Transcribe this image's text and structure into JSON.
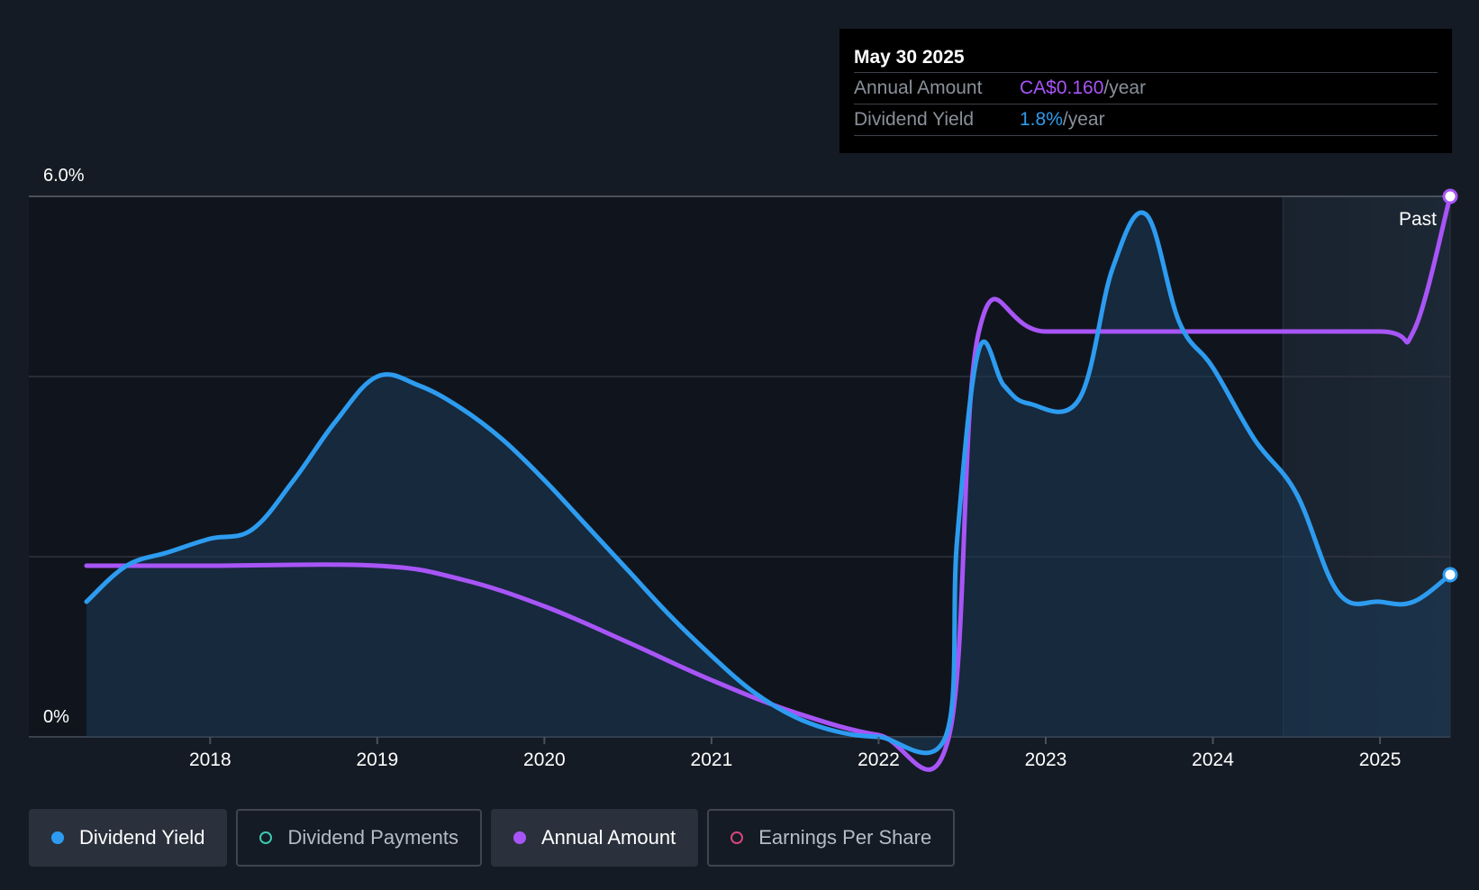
{
  "tooltip": {
    "date": "May 30 2025",
    "annual_label": "Annual Amount",
    "annual_value": "CA$0.160",
    "annual_unit": "/year",
    "yield_label": "Dividend Yield",
    "yield_value": "1.8%",
    "yield_unit": "/year"
  },
  "past_label": "Past",
  "legend": [
    {
      "label": "Dividend Yield",
      "color": "#2d9cf0",
      "active": true
    },
    {
      "label": "Dividend Payments",
      "color": "#3cc9b0",
      "active": false
    },
    {
      "label": "Annual Amount",
      "color": "#a855f7",
      "active": true
    },
    {
      "label": "Earnings Per Share",
      "color": "#d6467e",
      "active": false
    }
  ],
  "colors": {
    "yield": "#2d9cf0",
    "annual": "#a855f7",
    "background": "#151b24",
    "grid": "#2f3540"
  },
  "chart_data": {
    "type": "line",
    "y_tick_labels": [
      "6.0%",
      "0%"
    ],
    "ylim": [
      0,
      6
    ],
    "xlim": [
      2017.26,
      2025.42
    ],
    "x_tick_labels": [
      "2018",
      "2019",
      "2020",
      "2021",
      "2022",
      "2023",
      "2024",
      "2025"
    ],
    "x_ticks": [
      2018,
      2019,
      2020,
      2021,
      2022,
      2023,
      2024,
      2025
    ],
    "past_region_start": 2024.42,
    "series": [
      {
        "name": "Dividend Yield",
        "key": "yield",
        "points": [
          [
            2017.26,
            1.5
          ],
          [
            2017.5,
            1.9
          ],
          [
            2017.75,
            2.05
          ],
          [
            2018.0,
            2.2
          ],
          [
            2018.25,
            2.3
          ],
          [
            2018.5,
            2.85
          ],
          [
            2018.75,
            3.5
          ],
          [
            2019.0,
            4.0
          ],
          [
            2019.25,
            3.9
          ],
          [
            2019.5,
            3.65
          ],
          [
            2019.75,
            3.3
          ],
          [
            2020.0,
            2.85
          ],
          [
            2020.25,
            2.35
          ],
          [
            2020.5,
            1.85
          ],
          [
            2020.75,
            1.35
          ],
          [
            2021.0,
            0.9
          ],
          [
            2021.25,
            0.5
          ],
          [
            2021.5,
            0.22
          ],
          [
            2021.75,
            0.06
          ],
          [
            2022.0,
            0.0
          ],
          [
            2022.4,
            0.0
          ],
          [
            2022.47,
            2.2
          ],
          [
            2022.6,
            4.3
          ],
          [
            2022.75,
            3.9
          ],
          [
            2022.9,
            3.7
          ],
          [
            2023.2,
            3.75
          ],
          [
            2023.4,
            5.2
          ],
          [
            2023.6,
            5.8
          ],
          [
            2023.8,
            4.6
          ],
          [
            2024.0,
            4.1
          ],
          [
            2024.25,
            3.3
          ],
          [
            2024.5,
            2.7
          ],
          [
            2024.75,
            1.6
          ],
          [
            2025.0,
            1.5
          ],
          [
            2025.2,
            1.5
          ],
          [
            2025.42,
            1.8
          ]
        ]
      },
      {
        "name": "Annual Amount",
        "key": "annual",
        "points": [
          [
            2017.26,
            1.9
          ],
          [
            2018.0,
            1.9
          ],
          [
            2019.0,
            1.9
          ],
          [
            2019.5,
            1.75
          ],
          [
            2020.0,
            1.45
          ],
          [
            2020.5,
            1.05
          ],
          [
            2021.0,
            0.63
          ],
          [
            2021.5,
            0.27
          ],
          [
            2022.0,
            0.02
          ],
          [
            2022.42,
            0.0
          ],
          [
            2022.6,
            4.5
          ],
          [
            2023.0,
            4.5
          ],
          [
            2024.0,
            4.5
          ],
          [
            2025.0,
            4.5
          ],
          [
            2025.2,
            4.5
          ],
          [
            2025.42,
            6.0
          ]
        ]
      }
    ]
  }
}
